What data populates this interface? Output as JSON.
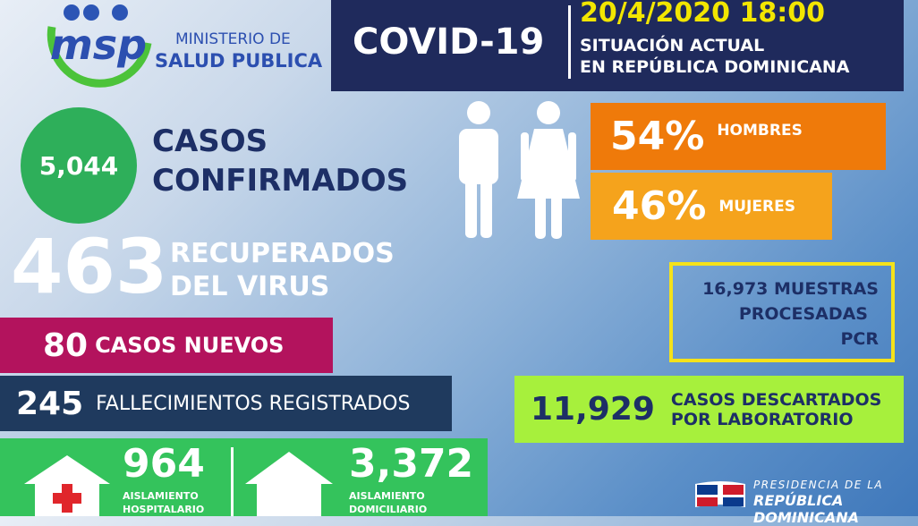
{
  "header": {
    "logo": "msp",
    "ministry_line1": "MINISTERIO DE",
    "ministry_line2": "SALUD PUBLICA",
    "title": "COVID-19",
    "datetime": "20/4/2020 18:00",
    "subtitle_line1": "SITUACIÓN ACTUAL",
    "subtitle_line2": "EN REPÚBLICA DOMINICANA"
  },
  "confirmed": {
    "value": "5,044",
    "label_line1": "CASOS",
    "label_line2": "CONFIRMADOS"
  },
  "recovered": {
    "value": "463",
    "label_line1": "RECUPERADOS",
    "label_line2": "DEL VIRUS"
  },
  "new_cases": {
    "value": "80",
    "label": "CASOS NUEVOS"
  },
  "deaths": {
    "value": "245",
    "label": "FALLECIMIENTOS REGISTRADOS"
  },
  "hospital": {
    "value": "964",
    "label_line1": "AISLAMIENTO",
    "label_line2": "HOSPITALARIO"
  },
  "home": {
    "value": "3,372",
    "label_line1": "AISLAMIENTO",
    "label_line2": "DOMICILIARIO"
  },
  "gender": {
    "men_percent": "54%",
    "men_label": "HOMBRES",
    "women_percent": "46%",
    "women_label": "MUJERES"
  },
  "tests": {
    "line1": "16,973 MUESTRAS",
    "line2": "PROCESADAS",
    "line3": "PCR"
  },
  "discarded": {
    "value": "11,929",
    "label_line1": "CASOS DESCARTADOS",
    "label_line2": "POR LABORATORIO"
  },
  "footer": {
    "line1": "PRESIDENCIA DE LA",
    "line2": "REPÚBLICA DOMINICANA"
  }
}
